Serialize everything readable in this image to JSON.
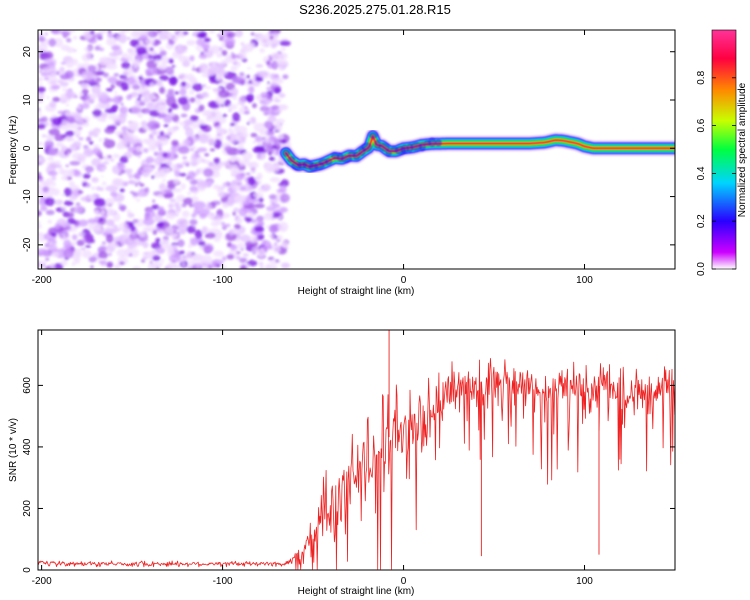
{
  "title": "S236.2025.275.01.28.R15",
  "chart_data": [
    {
      "type": "heatmap",
      "title": "S236.2025.275.01.28.R15",
      "xlabel": "Height of straight line (km)",
      "ylabel": "Frequency (Hz)",
      "xlim": [
        -202,
        150
      ],
      "ylim": [
        -25,
        24.5
      ],
      "xticks": [
        -200,
        -100,
        0,
        100
      ],
      "xtick_labels": [
        "-200",
        "-100",
        "0",
        "100"
      ],
      "yticks": [
        -20,
        -10,
        0,
        10,
        20
      ],
      "ytick_labels": [
        "-20",
        "-10",
        "0",
        "10",
        "20"
      ],
      "noise_region_x": [
        -202,
        -65
      ],
      "signal_track": {
        "x": [
          -65,
          -62,
          -58,
          -55,
          -52,
          -48,
          -45,
          -42,
          -38,
          -34,
          -30,
          -26,
          -22,
          -19,
          -17,
          -15,
          -12,
          -8,
          -4,
          0,
          5,
          10,
          15,
          25,
          40,
          55,
          70,
          78,
          84,
          88,
          92,
          96,
          100,
          105,
          115,
          130,
          150
        ],
        "freq": [
          -1,
          -2.5,
          -3.5,
          -3.3,
          -3.8,
          -3.5,
          -3.2,
          -2.7,
          -2,
          -2.2,
          -1.5,
          -1.6,
          -0.5,
          0.2,
          2.5,
          0.7,
          0.5,
          -0.6,
          -0.6,
          0,
          0.2,
          0.7,
          0.9,
          1,
          1,
          1,
          1,
          1.2,
          1.7,
          1.6,
          1.3,
          1,
          0.4,
          0,
          0,
          0,
          0
        ]
      },
      "colorbar": {
        "label": "Normalized spectral amplitude",
        "range": [
          0,
          1
        ],
        "ticks": [
          0.0,
          0.2,
          0.4,
          0.6,
          0.8
        ],
        "tick_labels": [
          "0.0",
          "0.2",
          "0.4",
          "0.6",
          "0.8"
        ],
        "colors": [
          "#ffffff",
          "#cc00ff",
          "#2a00ff",
          "#00d4ff",
          "#00ff40",
          "#c8ff00",
          "#ff8800",
          "#ff0040",
          "#ff3399"
        ]
      }
    },
    {
      "type": "line",
      "xlabel": "Height of straight line (km)",
      "ylabel": "SNR (10 * v/v)",
      "xlim": [
        -202,
        150
      ],
      "ylim": [
        0,
        780
      ],
      "xticks": [
        -200,
        -100,
        0,
        100
      ],
      "xtick_labels": [
        "-200",
        "-100",
        "0",
        "100"
      ],
      "yticks": [
        0,
        200,
        400,
        600
      ],
      "ytick_labels": [
        "0",
        "200",
        "400",
        "600"
      ],
      "series": [
        {
          "name": "SNR",
          "color": "#ee2222",
          "envelope": {
            "x": [
              -202,
              -65,
              -62,
              -55,
              -50,
              -45,
              -40,
              -35,
              -30,
              -25,
              -20,
              -15,
              -10,
              -5,
              0,
              5,
              10,
              15,
              20,
              25,
              30,
              40,
              50,
              60,
              70,
              80,
              90,
              100,
              110,
              120,
              130,
              140,
              150
            ],
            "median": [
              20,
              20,
              30,
              60,
              150,
              180,
              180,
              230,
              280,
              330,
              350,
              380,
              420,
              450,
              440,
              460,
              480,
              520,
              560,
              580,
              590,
              600,
              600,
              610,
              600,
              590,
              600,
              590,
              600,
              590,
              580,
              590,
              580
            ],
            "spread": [
              10,
              10,
              20,
              40,
              120,
              150,
              140,
              150,
              150,
              160,
              160,
              170,
              160,
              160,
              160,
              140,
              140,
              130,
              110,
              100,
              90,
              90,
              90,
              80,
              80,
              90,
              90,
              90,
              80,
              80,
              80,
              80,
              80
            ]
          },
          "spikes": [
            {
              "x": -8,
              "y": 780
            },
            {
              "x": 43,
              "y": 45
            },
            {
              "x": 108,
              "y": 50
            }
          ]
        }
      ]
    }
  ]
}
